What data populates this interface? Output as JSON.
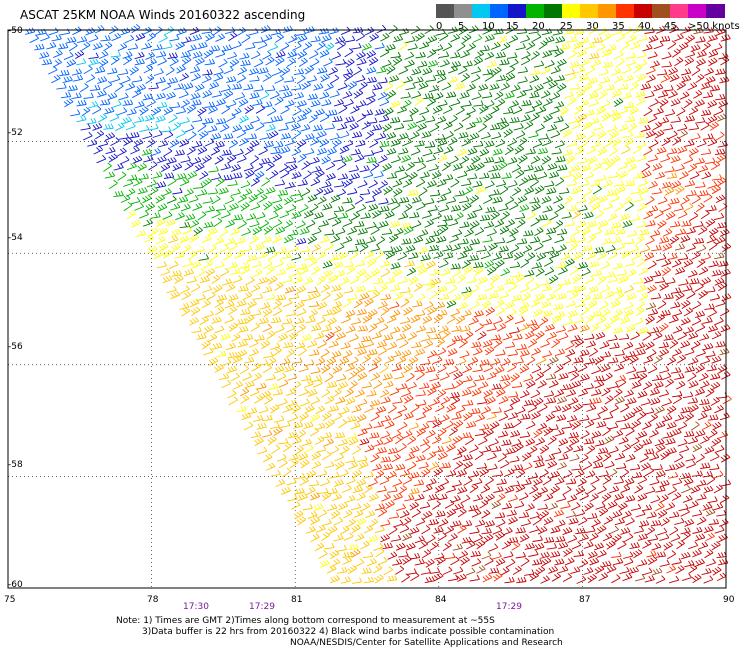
{
  "title": "ASCAT 25KM NOAA Winds 20160322 ascending",
  "legend": {
    "colors": [
      "#555555",
      "#8f8f8f",
      "#00c8f0",
      "#0064ff",
      "#1414c8",
      "#00b400",
      "#007800",
      "#ffff00",
      "#ffc800",
      "#ff9600",
      "#ff3200",
      "#c80000",
      "#a0501e",
      "#ff3c8c",
      "#c800c8",
      "#6400a0"
    ],
    "labels": [
      "0",
      "5",
      "10",
      "15",
      "20",
      "25",
      "30",
      "35",
      "40",
      "45",
      ">50 knots"
    ],
    "icon": "wind-barb-icon"
  },
  "map": {
    "lon_range": [
      75,
      90
    ],
    "lat_range": [
      -50,
      -60
    ],
    "x_ticks": [
      "75",
      "78",
      "81",
      "84",
      "87",
      "90"
    ],
    "y_ticks": [
      "-50",
      "-52",
      "-54",
      "-56",
      "-58",
      "-60"
    ],
    "time_labels": [
      "17:30",
      "17:29",
      "17:29"
    ]
  },
  "notes": {
    "line1": "Note: 1) Times are GMT 2)Times along bottom correspond to measurement at ~55S",
    "line2": "3)Data buffer is 22 hrs from 20160322 4) Black wind barbs indicate possible contamination",
    "line3": "NOAA/NESDIS/Center for Satellite Applications and Research"
  }
}
